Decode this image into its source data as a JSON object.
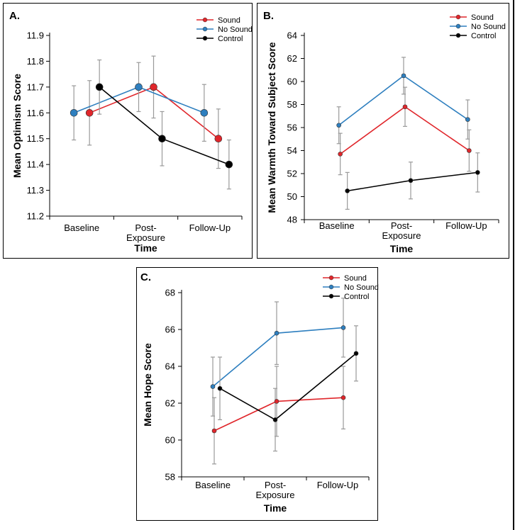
{
  "legend_colors": {
    "Sound": "#e0262b",
    "No Sound": "#2e7fbf",
    "Control": "#000000",
    "error_bar": "#9a9a9a"
  },
  "chart_data": [
    {
      "panel": "A.",
      "type": "line",
      "title": "",
      "xlabel": "Time",
      "ylabel": "Mean Optimism Score",
      "categories": [
        [
          "Baseline"
        ],
        [
          "Post-",
          "Exposure"
        ],
        [
          "Follow-Up"
        ]
      ],
      "ylim": [
        11.2,
        11.9
      ],
      "yticks": [
        "11.2",
        "11.3",
        "11.4",
        "11.5",
        "11.6",
        "11.7",
        "11.8",
        "11.9"
      ],
      "legend": [
        "Sound",
        "No Sound",
        "Control"
      ],
      "series": [
        {
          "name": "Sound",
          "values": [
            11.6,
            11.7,
            11.5
          ],
          "errors": [
            0.125,
            0.12,
            0.115
          ]
        },
        {
          "name": "No Sound",
          "values": [
            11.6,
            11.7,
            11.6
          ],
          "errors": [
            0.105,
            0.095,
            0.11
          ]
        },
        {
          "name": "Control",
          "values": [
            11.7,
            11.5,
            11.4
          ],
          "errors": [
            0.105,
            0.105,
            0.095
          ]
        }
      ]
    },
    {
      "panel": "B.",
      "type": "line",
      "title": "",
      "xlabel": "Time",
      "ylabel": "Mean Warmth Toward Subject Score",
      "categories": [
        [
          "Baseline"
        ],
        [
          "Post-",
          "Exposure"
        ],
        [
          "Follow-Up"
        ]
      ],
      "ylim": [
        48,
        64
      ],
      "yticks": [
        "48",
        "50",
        "52",
        "54",
        "56",
        "58",
        "60",
        "62",
        "64"
      ],
      "legend": [
        "Sound",
        "No Sound",
        "Control"
      ],
      "series": [
        {
          "name": "Sound",
          "values": [
            53.7,
            57.8,
            54.0
          ],
          "errors": [
            1.8,
            1.7,
            1.8
          ]
        },
        {
          "name": "No Sound",
          "values": [
            56.2,
            60.5,
            56.7
          ],
          "errors": [
            1.6,
            1.6,
            1.7
          ]
        },
        {
          "name": "Control",
          "values": [
            50.5,
            51.4,
            52.1
          ],
          "errors": [
            1.6,
            1.6,
            1.7
          ]
        }
      ]
    },
    {
      "panel": "C.",
      "type": "line",
      "title": "",
      "xlabel": "Time",
      "ylabel": "Mean Hope Score",
      "categories": [
        [
          "Baseline"
        ],
        [
          "Post-",
          "Exposure"
        ],
        [
          "Follow-Up"
        ]
      ],
      "ylim": [
        58,
        68
      ],
      "yticks": [
        "58",
        "60",
        "62",
        "64",
        "66",
        "68"
      ],
      "legend": [
        "Sound",
        "No Sound",
        "Control"
      ],
      "series": [
        {
          "name": "Sound",
          "values": [
            60.5,
            62.1,
            62.3
          ],
          "errors": [
            1.8,
            1.9,
            1.7
          ]
        },
        {
          "name": "No Sound",
          "values": [
            62.9,
            65.8,
            66.1
          ],
          "errors": [
            1.6,
            1.7,
            1.6
          ]
        },
        {
          "name": "Control",
          "values": [
            62.8,
            61.1,
            64.7
          ],
          "errors": [
            1.7,
            1.7,
            1.5
          ]
        }
      ]
    }
  ]
}
